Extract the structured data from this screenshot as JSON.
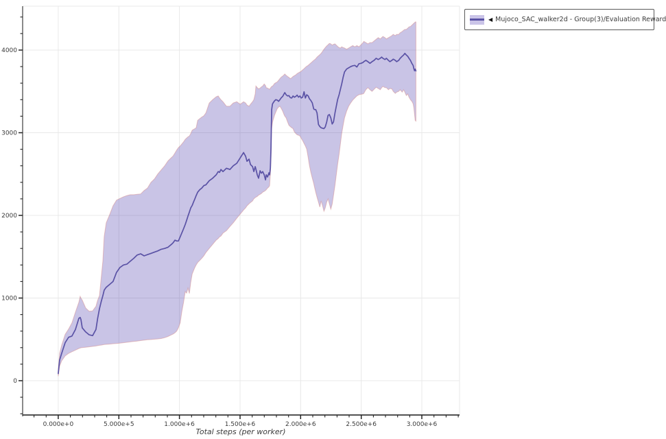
{
  "figure": {
    "background": "#ffffff"
  },
  "legend": {
    "arrow": "◀",
    "label": "Mujoco_SAC_walker2d - Group(3)/Evaluation Reward",
    "swatch_band_color": "#cac4e8",
    "swatch_line_color": "#5a52a5"
  },
  "chart_data": {
    "type": "line",
    "title": "",
    "xlabel": "Total steps (per worker)",
    "ylabel": "",
    "series_name": "Mujoco_SAC_walker2d - Group(3)/Evaluation Reward",
    "legend_position": "outside-top-right",
    "grid": "major-only",
    "xlim": [
      -294000,
      3311000
    ],
    "ylim": [
      -415,
      4531
    ],
    "x_major_ticks": [
      {
        "value": 0,
        "label": "0.000e+0"
      },
      {
        "value": 500000,
        "label": "5.000e+5"
      },
      {
        "value": 1000000,
        "label": "1.000e+6"
      },
      {
        "value": 1500000,
        "label": "1.500e+6"
      },
      {
        "value": 2000000,
        "label": "2.000e+6"
      },
      {
        "value": 2500000,
        "label": "2.500e+6"
      },
      {
        "value": 3000000,
        "label": "3.000e+6"
      }
    ],
    "x_minor_step": 100000,
    "y_major_ticks": [
      {
        "value": 0,
        "label": "0"
      },
      {
        "value": 1000,
        "label": "1000"
      },
      {
        "value": 2000,
        "label": "2000"
      },
      {
        "value": 3000,
        "label": "3000"
      },
      {
        "value": 4000,
        "label": "4000"
      }
    ],
    "y_minor_step": 200,
    "colors": {
      "line": "#5a52a5",
      "band_fill": "rgba(91,77,180,0.33)",
      "band_edge": "rgba(214,138,138,0.5)",
      "grid": "#e8e8e8",
      "spine_left": "#8a8a8a",
      "spine_bottom": "#3a3a3a",
      "spine_light": "#eaeaea",
      "tick": "#222222",
      "tick_label": "#3a3a3a"
    },
    "steps_unit": 1000,
    "points_format": [
      "steps_in_thousands",
      "mean",
      "band_low",
      "band_high"
    ],
    "points": [
      [
        0,
        85,
        55,
        120
      ],
      [
        11,
        250,
        175,
        330
      ],
      [
        28,
        330,
        240,
        430
      ],
      [
        57,
        460,
        300,
        560
      ],
      [
        85,
        525,
        330,
        625
      ],
      [
        113,
        540,
        350,
        700
      ],
      [
        142,
        620,
        370,
        830
      ],
      [
        170,
        755,
        390,
        950
      ],
      [
        181,
        765,
        395,
        1020
      ],
      [
        187,
        740,
        398,
        1000
      ],
      [
        198,
        640,
        400,
        975
      ],
      [
        226,
        590,
        405,
        880
      ],
      [
        255,
        555,
        410,
        840
      ],
      [
        283,
        545,
        415,
        845
      ],
      [
        311,
        620,
        420,
        900
      ],
      [
        325,
        755,
        424,
        975
      ],
      [
        340,
        870,
        428,
        1030
      ],
      [
        354,
        955,
        431,
        1240
      ],
      [
        368,
        1030,
        435,
        1450
      ],
      [
        379,
        1095,
        437,
        1745
      ],
      [
        396,
        1130,
        440,
        1910
      ],
      [
        424,
        1165,
        443,
        2010
      ],
      [
        452,
        1200,
        447,
        2115
      ],
      [
        481,
        1310,
        450,
        2185
      ],
      [
        509,
        1370,
        455,
        2205
      ],
      [
        538,
        1400,
        460,
        2225
      ],
      [
        566,
        1410,
        465,
        2240
      ],
      [
        594,
        1445,
        470,
        2250
      ],
      [
        623,
        1480,
        475,
        2250
      ],
      [
        651,
        1520,
        480,
        2255
      ],
      [
        680,
        1535,
        485,
        2260
      ],
      [
        708,
        1510,
        490,
        2300
      ],
      [
        736,
        1525,
        495,
        2330
      ],
      [
        765,
        1540,
        498,
        2400
      ],
      [
        793,
        1555,
        502,
        2440
      ],
      [
        821,
        1570,
        505,
        2500
      ],
      [
        849,
        1590,
        510,
        2550
      ],
      [
        878,
        1600,
        520,
        2600
      ],
      [
        906,
        1615,
        535,
        2660
      ],
      [
        934,
        1650,
        555,
        2700
      ],
      [
        948,
        1670,
        565,
        2720
      ],
      [
        963,
        1700,
        580,
        2755
      ],
      [
        977,
        1690,
        600,
        2790
      ],
      [
        991,
        1690,
        640,
        2820
      ],
      [
        1006,
        1740,
        700,
        2840
      ],
      [
        1020,
        1790,
        840,
        2865
      ],
      [
        1034,
        1840,
        950,
        2890
      ],
      [
        1048,
        1890,
        1080,
        2920
      ],
      [
        1059,
        1940,
        1060,
        2935
      ],
      [
        1070,
        1990,
        1120,
        2950
      ],
      [
        1082,
        2040,
        1055,
        2960
      ],
      [
        1093,
        2090,
        1190,
        2990
      ],
      [
        1105,
        2120,
        1290,
        3030
      ],
      [
        1116,
        2160,
        1330,
        3040
      ],
      [
        1127,
        2200,
        1370,
        3050
      ],
      [
        1138,
        2240,
        1400,
        3060
      ],
      [
        1150,
        2280,
        1430,
        3150
      ],
      [
        1167,
        2310,
        1455,
        3170
      ],
      [
        1184,
        2330,
        1480,
        3190
      ],
      [
        1201,
        2360,
        1510,
        3205
      ],
      [
        1218,
        2370,
        1550,
        3240
      ],
      [
        1246,
        2420,
        1600,
        3360
      ],
      [
        1274,
        2450,
        1650,
        3400
      ],
      [
        1303,
        2490,
        1700,
        3435
      ],
      [
        1320,
        2530,
        1720,
        3445
      ],
      [
        1331,
        2520,
        1740,
        3420
      ],
      [
        1342,
        2555,
        1750,
        3400
      ],
      [
        1359,
        2530,
        1785,
        3375
      ],
      [
        1388,
        2570,
        1815,
        3320
      ],
      [
        1416,
        2555,
        1865,
        3320
      ],
      [
        1444,
        2600,
        1910,
        3360
      ],
      [
        1473,
        2630,
        1965,
        3375
      ],
      [
        1501,
        2695,
        2015,
        3345
      ],
      [
        1529,
        2760,
        2065,
        3375
      ],
      [
        1546,
        2715,
        2090,
        3360
      ],
      [
        1557,
        2655,
        2115,
        3335
      ],
      [
        1574,
        2680,
        2140,
        3320
      ],
      [
        1586,
        2615,
        2155,
        3345
      ],
      [
        1603,
        2590,
        2175,
        3375
      ],
      [
        1614,
        2530,
        2200,
        3400
      ],
      [
        1625,
        2590,
        2215,
        3470
      ],
      [
        1631,
        2560,
        2220,
        3565
      ],
      [
        1642,
        2490,
        2230,
        3545
      ],
      [
        1653,
        2450,
        2245,
        3530
      ],
      [
        1665,
        2540,
        2255,
        3540
      ],
      [
        1676,
        2510,
        2265,
        3555
      ],
      [
        1687,
        2530,
        2280,
        3565
      ],
      [
        1699,
        2490,
        2290,
        3590
      ],
      [
        1710,
        2430,
        2300,
        3570
      ],
      [
        1716,
        2490,
        2310,
        3545
      ],
      [
        1727,
        2465,
        2330,
        3540
      ],
      [
        1738,
        2515,
        2345,
        3530
      ],
      [
        1744,
        2490,
        2360,
        3525
      ],
      [
        1750,
        2570,
        2500,
        3540
      ],
      [
        1755,
        2820,
        2700,
        3550
      ],
      [
        1758,
        3070,
        2900,
        3555
      ],
      [
        1761,
        3280,
        3050,
        3560
      ],
      [
        1767,
        3345,
        3120,
        3565
      ],
      [
        1772,
        3360,
        3150,
        3570
      ],
      [
        1784,
        3385,
        3210,
        3595
      ],
      [
        1795,
        3400,
        3250,
        3605
      ],
      [
        1807,
        3395,
        3290,
        3615
      ],
      [
        1818,
        3380,
        3310,
        3635
      ],
      [
        1829,
        3400,
        3320,
        3655
      ],
      [
        1841,
        3425,
        3290,
        3675
      ],
      [
        1852,
        3440,
        3260,
        3685
      ],
      [
        1863,
        3470,
        3220,
        3700
      ],
      [
        1869,
        3485,
        3200,
        3710
      ],
      [
        1880,
        3460,
        3180,
        3695
      ],
      [
        1892,
        3445,
        3130,
        3680
      ],
      [
        1903,
        3450,
        3090,
        3670
      ],
      [
        1914,
        3425,
        3075,
        3655
      ],
      [
        1926,
        3420,
        3060,
        3665
      ],
      [
        1937,
        3445,
        3050,
        3680
      ],
      [
        1948,
        3430,
        3010,
        3690
      ],
      [
        1960,
        3440,
        2990,
        3700
      ],
      [
        1971,
        3455,
        2975,
        3715
      ],
      [
        1982,
        3430,
        2970,
        3725
      ],
      [
        1994,
        3445,
        2960,
        3735
      ],
      [
        2005,
        3420,
        2930,
        3745
      ],
      [
        2016,
        3430,
        2905,
        3760
      ],
      [
        2028,
        3495,
        2870,
        3775
      ],
      [
        2039,
        3420,
        2840,
        3790
      ],
      [
        2050,
        3460,
        2800,
        3805
      ],
      [
        2062,
        3445,
        2700,
        3815
      ],
      [
        2073,
        3410,
        2600,
        3830
      ],
      [
        2084,
        3390,
        2520,
        3845
      ],
      [
        2096,
        3360,
        2450,
        3860
      ],
      [
        2107,
        3290,
        2390,
        3875
      ],
      [
        2113,
        3280,
        2350,
        3880
      ],
      [
        2124,
        3280,
        2280,
        3895
      ],
      [
        2135,
        3240,
        2220,
        3915
      ],
      [
        2147,
        3100,
        2160,
        3930
      ],
      [
        2158,
        3075,
        2100,
        3945
      ],
      [
        2169,
        3060,
        2175,
        3960
      ],
      [
        2181,
        3055,
        2115,
        3985
      ],
      [
        2192,
        3050,
        2050,
        4010
      ],
      [
        2203,
        3070,
        2090,
        4030
      ],
      [
        2215,
        3130,
        2160,
        4050
      ],
      [
        2226,
        3210,
        2200,
        4065
      ],
      [
        2237,
        3220,
        2140,
        4080
      ],
      [
        2249,
        3180,
        2075,
        4075
      ],
      [
        2260,
        3105,
        2135,
        4060
      ],
      [
        2271,
        3130,
        2240,
        4070
      ],
      [
        2283,
        3240,
        2365,
        4075
      ],
      [
        2294,
        3320,
        2490,
        4060
      ],
      [
        2305,
        3400,
        2615,
        4045
      ],
      [
        2317,
        3460,
        2740,
        4030
      ],
      [
        2328,
        3525,
        2865,
        4025
      ],
      [
        2339,
        3590,
        2990,
        4040
      ],
      [
        2351,
        3675,
        3095,
        4030
      ],
      [
        2362,
        3735,
        3180,
        4025
      ],
      [
        2379,
        3770,
        3260,
        4010
      ],
      [
        2396,
        3785,
        3320,
        4025
      ],
      [
        2413,
        3800,
        3360,
        4040
      ],
      [
        2430,
        3810,
        3395,
        4055
      ],
      [
        2447,
        3815,
        3420,
        4040
      ],
      [
        2464,
        3795,
        3445,
        4055
      ],
      [
        2481,
        3835,
        3460,
        4040
      ],
      [
        2498,
        3840,
        3465,
        4065
      ],
      [
        2515,
        3850,
        3470,
        4090
      ],
      [
        2521,
        3860,
        3475,
        4105
      ],
      [
        2538,
        3875,
        3520,
        4090
      ],
      [
        2555,
        3860,
        3545,
        4075
      ],
      [
        2572,
        3840,
        3520,
        4090
      ],
      [
        2589,
        3860,
        3500,
        4090
      ],
      [
        2606,
        3875,
        3525,
        4110
      ],
      [
        2623,
        3900,
        3550,
        4130
      ],
      [
        2640,
        3885,
        3535,
        4150
      ],
      [
        2657,
        3900,
        3520,
        4135
      ],
      [
        2668,
        3915,
        3545,
        4150
      ],
      [
        2679,
        3900,
        3560,
        4165
      ],
      [
        2696,
        3885,
        3545,
        4150
      ],
      [
        2707,
        3900,
        3545,
        4135
      ],
      [
        2724,
        3875,
        3520,
        4150
      ],
      [
        2736,
        3860,
        3535,
        4160
      ],
      [
        2753,
        3875,
        3530,
        4175
      ],
      [
        2764,
        3890,
        3500,
        4190
      ],
      [
        2781,
        3875,
        3475,
        4175
      ],
      [
        2792,
        3860,
        3490,
        4190
      ],
      [
        2809,
        3875,
        3500,
        4190
      ],
      [
        2821,
        3900,
        3520,
        4210
      ],
      [
        2838,
        3925,
        3490,
        4225
      ],
      [
        2849,
        3940,
        3520,
        4240
      ],
      [
        2860,
        3960,
        3490,
        4250
      ],
      [
        2872,
        3940,
        3450,
        4250
      ],
      [
        2883,
        3925,
        3470,
        4265
      ],
      [
        2894,
        3900,
        3430,
        4280
      ],
      [
        2906,
        3875,
        3400,
        4285
      ],
      [
        2917,
        3840,
        3380,
        4300
      ],
      [
        2928,
        3815,
        3350,
        4315
      ],
      [
        2934,
        3775,
        3300,
        4325
      ],
      [
        2940,
        3750,
        3220,
        4330
      ],
      [
        2945,
        3770,
        3150,
        4340
      ],
      [
        2951,
        3748,
        3140,
        4340
      ]
    ]
  }
}
